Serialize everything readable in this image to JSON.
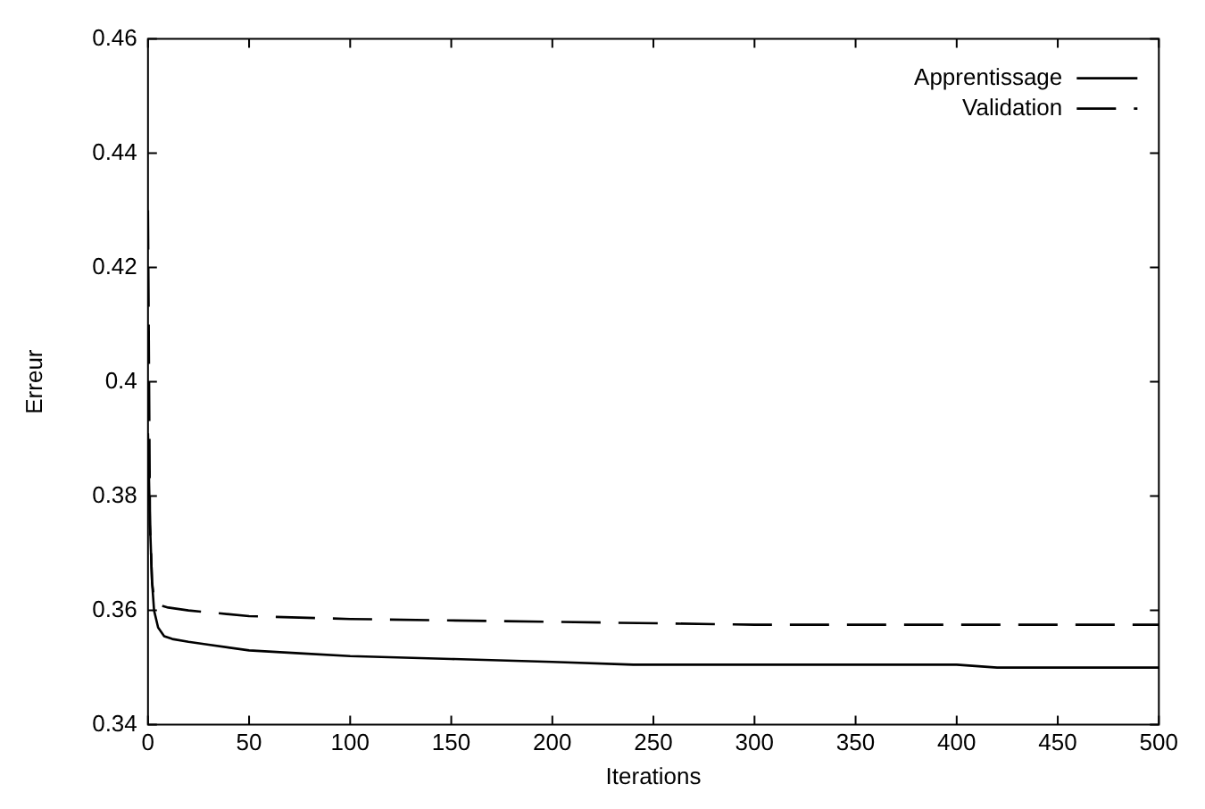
{
  "chart_data": {
    "type": "line",
    "xlabel": "Iterations",
    "ylabel": "Erreur",
    "xlim": [
      0,
      500
    ],
    "xticks": [
      0,
      50,
      100,
      150,
      200,
      250,
      300,
      350,
      400,
      450,
      500
    ],
    "ylim": [
      0.34,
      0.46
    ],
    "yticks": [
      0.34,
      0.36,
      0.38,
      0.4,
      0.42,
      0.44,
      0.46
    ],
    "grid": false,
    "legend": "top right",
    "marker": "none",
    "series": [
      {
        "name": "Apprentissage",
        "color": "#000000",
        "line_style": "solid",
        "x": [
          0,
          1,
          2,
          3,
          5,
          8,
          12,
          20,
          30,
          50,
          75,
          100,
          150,
          200,
          240,
          300,
          400,
          420,
          500
        ],
        "values": [
          0.391,
          0.375,
          0.365,
          0.36,
          0.357,
          0.3555,
          0.355,
          0.3545,
          0.354,
          0.353,
          0.3525,
          0.352,
          0.3515,
          0.351,
          0.3505,
          0.3505,
          0.3505,
          0.35,
          0.35
        ]
      },
      {
        "name": "Validation",
        "color": "#000000",
        "line_style": "dashed",
        "x": [
          0,
          1,
          2,
          3,
          5,
          10,
          20,
          50,
          100,
          200,
          300,
          500
        ],
        "values": [
          0.43,
          0.375,
          0.365,
          0.362,
          0.361,
          0.3605,
          0.36,
          0.359,
          0.3585,
          0.358,
          0.3575,
          0.3575
        ]
      }
    ]
  }
}
